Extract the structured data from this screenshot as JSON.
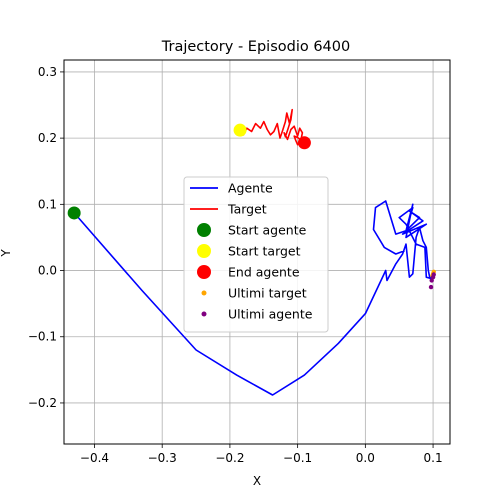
{
  "chart_data": {
    "type": "line",
    "title": "Trajectory - Episodio 6400",
    "xlabel": "X",
    "ylabel": "Y",
    "xlim": [
      -0.445,
      0.125
    ],
    "ylim": [
      -0.262,
      0.318
    ],
    "xticks": [
      -0.4,
      -0.3,
      -0.2,
      -0.1,
      0.0,
      0.1
    ],
    "xtick_labels": [
      "−0.4",
      "−0.3",
      "−0.2",
      "−0.1",
      "0.0",
      "0.1"
    ],
    "yticks": [
      -0.2,
      -0.1,
      0.0,
      0.1,
      0.2,
      0.3
    ],
    "ytick_labels": [
      "−0.2",
      "−0.1",
      "0.0",
      "0.1",
      "0.2",
      "0.3"
    ],
    "grid": true,
    "legend_position": "center",
    "series": [
      {
        "name": "Agente",
        "kind": "line",
        "color": "#0000ff",
        "x": [
          -0.43,
          -0.33,
          -0.25,
          -0.19,
          -0.137,
          -0.09,
          -0.04,
          0.0,
          0.03,
          0.032,
          0.045,
          0.055,
          0.06,
          0.065,
          0.07,
          0.075,
          0.08,
          0.085,
          0.09,
          0.093,
          0.095,
          0.1,
          0.1,
          0.097,
          0.09,
          0.088,
          0.075,
          0.06,
          0.055,
          0.05,
          0.07,
          0.06,
          0.08,
          0.065,
          0.085,
          0.055,
          0.09,
          0.06,
          0.07,
          0.06,
          0.045,
          0.03,
          0.015,
          0.012,
          0.028,
          0.045,
          0.058
        ],
        "y": [
          0.087,
          -0.03,
          -0.12,
          -0.158,
          -0.188,
          -0.158,
          -0.11,
          -0.065,
          0.0,
          -0.015,
          0.01,
          0.025,
          0.04,
          -0.01,
          -0.005,
          0.05,
          0.065,
          0.045,
          0.035,
          0.0,
          -0.01,
          -0.01,
          -0.005,
          -0.012,
          -0.01,
          0.035,
          0.04,
          0.07,
          0.075,
          0.08,
          0.095,
          0.06,
          0.08,
          0.09,
          0.075,
          0.055,
          0.07,
          0.05,
          0.1,
          0.06,
          0.055,
          0.105,
          0.095,
          0.062,
          0.035,
          0.025,
          0.03
        ]
      },
      {
        "name": "Target",
        "kind": "line",
        "color": "#ff0000",
        "x": [
          -0.185,
          -0.18,
          -0.175,
          -0.168,
          -0.162,
          -0.155,
          -0.15,
          -0.145,
          -0.14,
          -0.135,
          -0.13,
          -0.126,
          -0.122,
          -0.118,
          -0.116,
          -0.112,
          -0.108,
          -0.11,
          -0.114,
          -0.118,
          -0.12,
          -0.115,
          -0.11,
          -0.105,
          -0.1,
          -0.097,
          -0.093,
          -0.095,
          -0.1,
          -0.103,
          -0.105,
          -0.1,
          -0.095,
          -0.09,
          -0.087
        ],
        "y": [
          0.21,
          0.205,
          0.215,
          0.21,
          0.222,
          0.215,
          0.225,
          0.213,
          0.205,
          0.21,
          0.222,
          0.2,
          0.212,
          0.225,
          0.238,
          0.222,
          0.243,
          0.228,
          0.215,
          0.202,
          0.208,
          0.198,
          0.213,
          0.218,
          0.203,
          0.215,
          0.208,
          0.198,
          0.19,
          0.197,
          0.203,
          0.201,
          0.197,
          0.2,
          0.193
        ]
      }
    ],
    "points": [
      {
        "name": "Start agente",
        "color": "#008000",
        "size": "large",
        "x": [
          -0.43
        ],
        "y": [
          0.087
        ]
      },
      {
        "name": "Start target",
        "color": "#ffff00",
        "size": "large",
        "x": [
          -0.185
        ],
        "y": [
          0.212
        ]
      },
      {
        "name": "End agente",
        "color": "#ff0000",
        "size": "large",
        "x": [
          -0.09
        ],
        "y": [
          0.193
        ]
      },
      {
        "name": "Ultimi target",
        "color": "#ffa500",
        "size": "small",
        "x": [
          0.1,
          0.099,
          0.101,
          0.1
        ],
        "y": [
          -0.005,
          -0.008,
          -0.002,
          -0.006
        ]
      },
      {
        "name": "Ultimi agente",
        "color": "#800080",
        "size": "small",
        "x": [
          0.097,
          0.098,
          0.1,
          0.101
        ],
        "y": [
          -0.025,
          -0.015,
          -0.01,
          -0.006
        ]
      }
    ],
    "legend": [
      {
        "label": "Agente",
        "symbol": "line",
        "color": "#0000ff"
      },
      {
        "label": "Target",
        "symbol": "line",
        "color": "#ff0000"
      },
      {
        "label": "Start agente",
        "symbol": "big-dot",
        "color": "#008000"
      },
      {
        "label": "Start target",
        "symbol": "big-dot",
        "color": "#ffff00"
      },
      {
        "label": "End agente",
        "symbol": "big-dot",
        "color": "#ff0000"
      },
      {
        "label": "Ultimi target",
        "symbol": "small-dot",
        "color": "#ffa500"
      },
      {
        "label": "Ultimi agente",
        "symbol": "small-dot",
        "color": "#800080"
      }
    ]
  }
}
